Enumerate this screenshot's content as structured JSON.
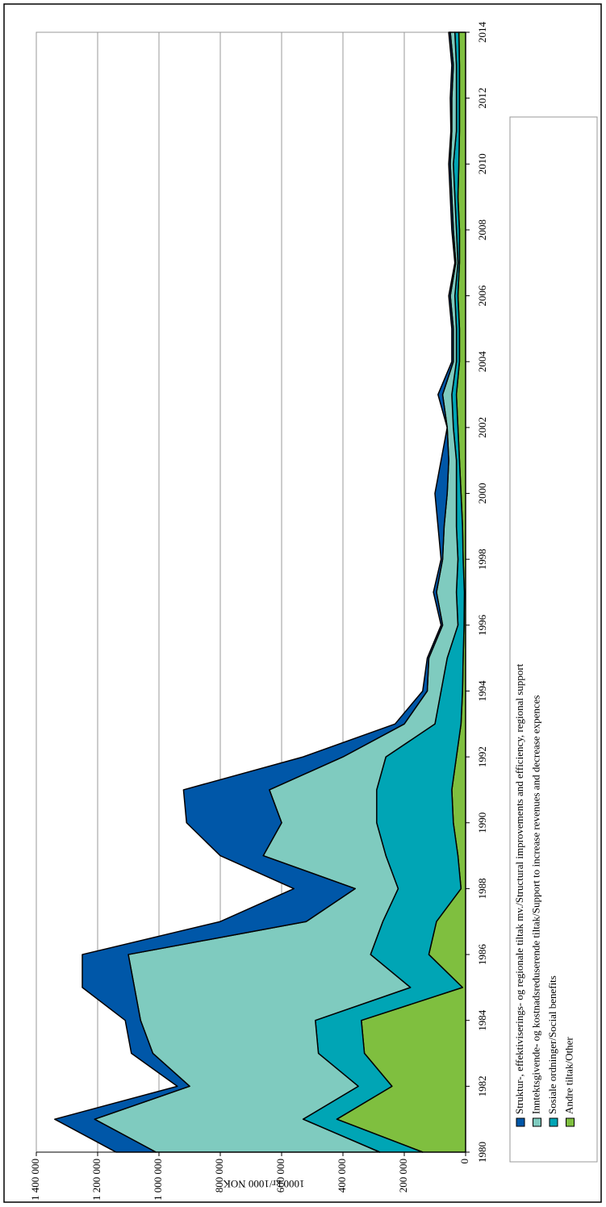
{
  "chart_data": {
    "type": "stacked-area",
    "y_label": "1000 kr/1000 NOK",
    "x": [
      1980,
      1981,
      1982,
      1983,
      1984,
      1985,
      1986,
      1987,
      1988,
      1989,
      1990,
      1991,
      1992,
      1993,
      1994,
      1995,
      1996,
      1997,
      1998,
      1999,
      2000,
      2001,
      2002,
      2003,
      2004,
      2005,
      2006,
      2007,
      2008,
      2009,
      2010,
      2011,
      2012,
      2013,
      2014
    ],
    "xlim": [
      1980,
      2014
    ],
    "xticks": [
      1980,
      1982,
      1984,
      1986,
      1988,
      1990,
      1992,
      1994,
      1996,
      1998,
      2000,
      2002,
      2004,
      2006,
      2008,
      2010,
      2012,
      2014
    ],
    "ylim": [
      0,
      1400000
    ],
    "yticks": [
      0,
      {
        "value": 200000,
        "label": "200 000"
      },
      {
        "value": 400000,
        "label": "400 000"
      },
      {
        "value": 600000,
        "label": "600 000"
      },
      {
        "value": 800000,
        "label": "800 000"
      },
      {
        "value": 1000000,
        "label": "1 000 000"
      },
      {
        "value": 1200000,
        "label": "1 200 000"
      },
      {
        "value": 1400000,
        "label": "1 400 000"
      }
    ],
    "grid": true,
    "series": [
      {
        "name": "Struktur-, effektiviserings- og regionale tiltak mv./Structural improvements and efficiency, regional support",
        "color": "#0057a8",
        "values": [
          130000,
          130000,
          40000,
          70000,
          50000,
          170000,
          150000,
          280000,
          200000,
          140000,
          310000,
          280000,
          130000,
          30000,
          15000,
          5000,
          5000,
          10000,
          5000,
          20000,
          40000,
          25000,
          0,
          15000,
          5000,
          5000,
          5000,
          3000,
          5000,
          5000,
          5000,
          3000,
          5000,
          5000,
          5000
        ]
      },
      {
        "name": "Inntektsgivende- og kostnadsreduserende tiltak/Support to increase revenues and decrease expences",
        "color": "#7fcbbf",
        "values": [
          730000,
          680000,
          550000,
          540000,
          570000,
          900000,
          790000,
          250000,
          140000,
          400000,
          310000,
          350000,
          140000,
          100000,
          45000,
          60000,
          50000,
          65000,
          50000,
          40000,
          30000,
          25000,
          20000,
          30000,
          10000,
          10000,
          15000,
          7000,
          10000,
          10000,
          10000,
          15000,
          15000,
          10000,
          15000
        ]
      },
      {
        "name": "Sosiale ordninger/Social benefits",
        "color": "#00a5b5",
        "values": [
          140000,
          110000,
          110000,
          150000,
          150000,
          170000,
          190000,
          175000,
          205000,
          235000,
          250000,
          245000,
          230000,
          85000,
          70000,
          52000,
          20000,
          26000,
          17000,
          20000,
          15000,
          10000,
          15000,
          15000,
          10000,
          10000,
          10000,
          5000,
          10000,
          10000,
          18000,
          10000,
          10000,
          10000,
          13000
        ]
      },
      {
        "name": "Andre tiltak/Other",
        "color": "#7fbf3f",
        "values": [
          140000,
          420000,
          240000,
          330000,
          340000,
          10000,
          120000,
          95000,
          15000,
          25000,
          40000,
          45000,
          30000,
          15000,
          10000,
          8000,
          5000,
          4000,
          8000,
          10000,
          15000,
          20000,
          25000,
          30000,
          20000,
          20000,
          25000,
          20000,
          20000,
          25000,
          22000,
          20000,
          20000,
          20000,
          22000
        ]
      }
    ]
  }
}
